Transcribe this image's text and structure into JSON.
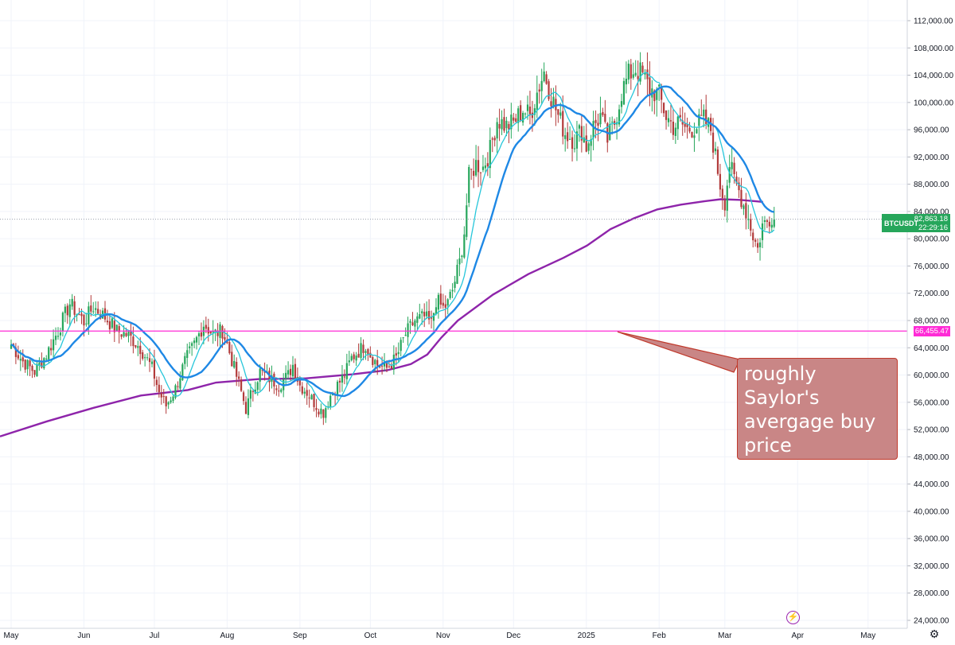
{
  "app": {
    "symbol": "BTCUSDT"
  },
  "chart_data": {
    "type": "candlestick",
    "y_range": [
      24000,
      112000
    ],
    "y_ticks": [
      "112,000.00",
      "108,000.00",
      "104,000.00",
      "100,000.00",
      "96,000.00",
      "92,000.00",
      "88,000.00",
      "84,000.00",
      "80,000.00",
      "76,000.00",
      "72,000.00",
      "68,000.00",
      "64,000.00",
      "60,000.00",
      "56,000.00",
      "52,000.00",
      "48,000.00",
      "44,000.00",
      "40,000.00",
      "36,000.00",
      "32,000.00",
      "28,000.00",
      "24,000.00"
    ],
    "x_labels": [
      {
        "label": "May",
        "t": 0
      },
      {
        "label": "Jun",
        "t": 31
      },
      {
        "label": "Jul",
        "t": 61
      },
      {
        "label": "Aug",
        "t": 92
      },
      {
        "label": "Sep",
        "t": 123
      },
      {
        "label": "Oct",
        "t": 153
      },
      {
        "label": "Nov",
        "t": 184
      },
      {
        "label": "Dec",
        "t": 214
      },
      {
        "label": "2025",
        "t": 245
      },
      {
        "label": "Feb",
        "t": 276
      },
      {
        "label": "Mar",
        "t": 304
      },
      {
        "label": "Apr",
        "t": 335
      },
      {
        "label": "May",
        "t": 365
      }
    ],
    "close_anchors": [
      [
        0,
        64500
      ],
      [
        5,
        62000
      ],
      [
        10,
        60500
      ],
      [
        15,
        63000
      ],
      [
        20,
        66500
      ],
      [
        25,
        70500
      ],
      [
        31,
        67800
      ],
      [
        35,
        70000
      ],
      [
        40,
        68500
      ],
      [
        45,
        66500
      ],
      [
        50,
        65800
      ],
      [
        55,
        64000
      ],
      [
        60,
        61000
      ],
      [
        63,
        57500
      ],
      [
        66,
        55500
      ],
      [
        70,
        58000
      ],
      [
        74,
        62000
      ],
      [
        78,
        64500
      ],
      [
        82,
        67500
      ],
      [
        86,
        66000
      ],
      [
        90,
        66500
      ],
      [
        92,
        64500
      ],
      [
        95,
        61000
      ],
      [
        98,
        57500
      ],
      [
        100,
        55000
      ],
      [
        103,
        58000
      ],
      [
        106,
        60500
      ],
      [
        110,
        59500
      ],
      [
        114,
        58500
      ],
      [
        118,
        60000
      ],
      [
        120,
        61500
      ],
      [
        123,
        58500
      ],
      [
        126,
        57500
      ],
      [
        130,
        55500
      ],
      [
        133,
        54500
      ],
      [
        136,
        57000
      ],
      [
        139,
        58500
      ],
      [
        142,
        60000
      ],
      [
        145,
        62500
      ],
      [
        148,
        63500
      ],
      [
        151,
        64500
      ],
      [
        153,
        63000
      ],
      [
        156,
        61500
      ],
      [
        160,
        61000
      ],
      [
        164,
        62500
      ],
      [
        168,
        66000
      ],
      [
        172,
        68000
      ],
      [
        176,
        68500
      ],
      [
        179,
        67500
      ],
      [
        181,
        71000
      ],
      [
        184,
        69800
      ],
      [
        186,
        70500
      ],
      [
        188,
        72500
      ],
      [
        191,
        76500
      ],
      [
        193,
        81000
      ],
      [
        195,
        89000
      ],
      [
        198,
        91000
      ],
      [
        201,
        90500
      ],
      [
        204,
        93000
      ],
      [
        207,
        97500
      ],
      [
        211,
        96500
      ],
      [
        214,
        97000
      ],
      [
        218,
        99000
      ],
      [
        221,
        98000
      ],
      [
        224,
        101500
      ],
      [
        227,
        104500
      ],
      [
        230,
        101000
      ],
      [
        233,
        98000
      ],
      [
        236,
        95500
      ],
      [
        240,
        94500
      ],
      [
        243,
        96000
      ],
      [
        245,
        93500
      ],
      [
        248,
        96500
      ],
      [
        251,
        98000
      ],
      [
        254,
        94500
      ],
      [
        257,
        97000
      ],
      [
        260,
        101500
      ],
      [
        263,
        104000
      ],
      [
        266,
        105000
      ],
      [
        269,
        104000
      ],
      [
        272,
        102000
      ],
      [
        276,
        101000
      ],
      [
        279,
        98000
      ],
      [
        282,
        96500
      ],
      [
        285,
        97000
      ],
      [
        288,
        96000
      ],
      [
        292,
        96500
      ],
      [
        295,
        97500
      ],
      [
        298,
        96000
      ],
      [
        300,
        92000
      ],
      [
        302,
        88000
      ],
      [
        304,
        85500
      ],
      [
        306,
        91000
      ],
      [
        308,
        88500
      ],
      [
        310,
        87000
      ],
      [
        312,
        85000
      ],
      [
        314,
        83000
      ],
      [
        316,
        80500
      ],
      [
        318,
        78500
      ],
      [
        320,
        82000
      ],
      [
        322,
        82500
      ],
      [
        324,
        83500
      ],
      [
        325,
        82863
      ]
    ],
    "series": [
      {
        "name": "",
        "kind": "short-ma",
        "color": "#26c6da"
      },
      {
        "name": "",
        "kind": "medium-ma",
        "color": "#1e88e5"
      },
      {
        "name": "",
        "kind": "long-ma",
        "color": "#8e24aa"
      }
    ],
    "long_ma_anchors": [
      [
        0,
        51000
      ],
      [
        20,
        53200
      ],
      [
        40,
        55200
      ],
      [
        60,
        57000
      ],
      [
        80,
        57800
      ],
      [
        92,
        58900
      ],
      [
        110,
        59400
      ],
      [
        130,
        59500
      ],
      [
        150,
        60100
      ],
      [
        165,
        60700
      ],
      [
        175,
        61600
      ],
      [
        182,
        63000
      ],
      [
        188,
        65500
      ],
      [
        195,
        68000
      ],
      [
        210,
        71800
      ],
      [
        225,
        74800
      ],
      [
        240,
        77200
      ],
      [
        250,
        79000
      ],
      [
        260,
        81400
      ],
      [
        270,
        83000
      ],
      [
        280,
        84300
      ],
      [
        290,
        85000
      ],
      [
        300,
        85500
      ],
      [
        307,
        85800
      ],
      [
        315,
        85700
      ],
      [
        322,
        85500
      ],
      [
        325,
        85400
      ]
    ],
    "horizontal_line": {
      "value": 66455.47,
      "color": "#ff2bd6"
    },
    "last_price": {
      "value": "82,863.18",
      "countdown": "22:29:16"
    },
    "level_label": "66,455.47",
    "annotation": {
      "text": "roughly Saylor's avergage buy price",
      "target_t": 261,
      "target_value": 66455.47
    },
    "colors": {
      "up": "#26a65b",
      "down": "#b23a3a",
      "grid": "#f0f3fa"
    }
  },
  "callout_text": "roughly\nSaylor's\navergage buy\nprice"
}
